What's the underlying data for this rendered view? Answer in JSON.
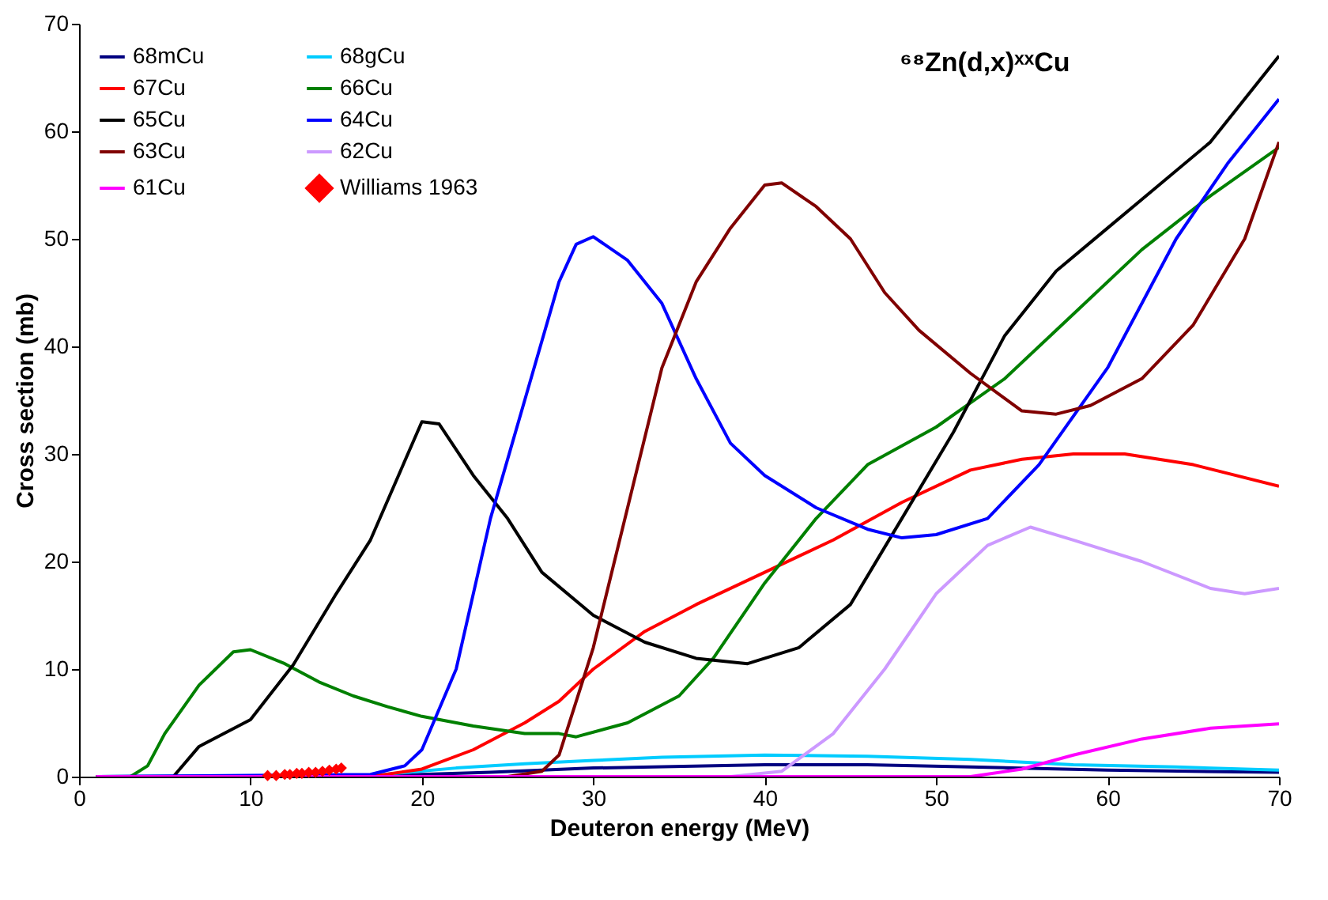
{
  "chart_data": {
    "type": "line",
    "title": "⁶⁸Zn(d,x)ˣˣCu",
    "xlabel": "Deuteron energy (MeV)",
    "ylabel": "Cross section (mb)",
    "xlim": [
      0,
      70
    ],
    "xticks": [
      0,
      10,
      20,
      30,
      40,
      50,
      60,
      70
    ],
    "ylim": [
      0,
      70
    ],
    "yticks": [
      0,
      10,
      20,
      30,
      40,
      50,
      60,
      70
    ],
    "grid": false,
    "legend": "top left",
    "line_style": "solid",
    "series": [
      {
        "name": "68mCu",
        "color": "#000080",
        "x": [
          1,
          18,
          24,
          30,
          40,
          46,
          52,
          60,
          70
        ],
        "values": [
          0,
          0.1,
          0.4,
          0.8,
          1.1,
          1.1,
          0.9,
          0.6,
          0.4
        ]
      },
      {
        "name": "68gCu",
        "color": "#00ccff",
        "x": [
          1,
          17,
          22,
          26,
          30,
          34,
          40,
          46,
          52,
          58,
          64,
          70
        ],
        "values": [
          0,
          0.1,
          0.8,
          1.2,
          1.5,
          1.8,
          2,
          1.9,
          1.6,
          1.1,
          0.9,
          0.6
        ]
      },
      {
        "name": "67Cu",
        "color": "#ff0000",
        "x": [
          1,
          17,
          20,
          23,
          26,
          28,
          30,
          33,
          36,
          40,
          44,
          48,
          52,
          55,
          58,
          61,
          65,
          70
        ],
        "values": [
          0,
          0,
          0.7,
          2.5,
          5,
          7,
          10,
          13.5,
          16,
          19,
          22,
          25.5,
          28.5,
          29.5,
          30,
          30,
          29,
          27
        ]
      },
      {
        "name": "66Cu",
        "color": "#008000",
        "x": [
          1,
          3,
          4,
          5,
          7,
          9,
          10,
          12,
          14,
          16,
          18,
          20,
          23,
          26,
          28,
          29,
          32,
          35,
          37,
          40,
          43,
          46,
          50,
          54,
          58,
          62,
          66,
          70
        ],
        "values": [
          0,
          0,
          1,
          4,
          8.5,
          11.6,
          11.8,
          10.5,
          8.8,
          7.5,
          6.5,
          5.6,
          4.7,
          4,
          4,
          3.7,
          5,
          7.5,
          11,
          18,
          24,
          29,
          32.5,
          37,
          43,
          49,
          54,
          58.5
        ]
      },
      {
        "name": "65Cu",
        "color": "#000000",
        "x": [
          1,
          5.5,
          7,
          10,
          12.5,
          15,
          17,
          20,
          21,
          23,
          25,
          27,
          30,
          33,
          36,
          39,
          42,
          45,
          48,
          51,
          54,
          57,
          60,
          63,
          66,
          70
        ],
        "values": [
          0,
          0,
          2.8,
          5.3,
          10.4,
          17,
          22,
          33,
          32.8,
          28,
          24,
          19,
          15,
          12.5,
          11,
          10.5,
          12,
          16,
          24,
          32,
          41,
          47,
          51,
          55,
          59,
          67
        ]
      },
      {
        "name": "64Cu",
        "color": "#0000ff",
        "x": [
          1,
          17,
          19,
          20,
          22,
          24,
          26,
          28,
          29,
          30,
          32,
          34,
          36,
          38,
          40,
          43,
          46,
          48,
          50,
          53,
          56,
          60,
          64,
          67,
          70
        ],
        "values": [
          0,
          0.2,
          1,
          2.5,
          10,
          24,
          35,
          46,
          49.5,
          50.2,
          48,
          44,
          37,
          31,
          28,
          25,
          23,
          22.2,
          22.5,
          24,
          29,
          38,
          50,
          57,
          63
        ]
      },
      {
        "name": "63Cu",
        "color": "#800000",
        "x": [
          1,
          25,
          27,
          28,
          30,
          32,
          34,
          36,
          38,
          40,
          41,
          43,
          45,
          47,
          49,
          52,
          55,
          57,
          59,
          62,
          65,
          68,
          70
        ],
        "values": [
          0,
          0,
          0.5,
          2,
          12,
          25,
          38,
          46,
          51,
          55,
          55.2,
          53,
          50,
          45,
          41.5,
          37.5,
          34,
          33.7,
          34.5,
          37,
          42,
          50,
          59
        ]
      },
      {
        "name": "62Cu",
        "color": "#cc99ff",
        "x": [
          1,
          38,
          41,
          44,
          47,
          50,
          53,
          55.5,
          58,
          62,
          66,
          68,
          70
        ],
        "values": [
          0,
          0,
          0.5,
          4,
          10,
          17,
          21.5,
          23.2,
          22,
          20,
          17.5,
          17,
          17.5
        ]
      },
      {
        "name": "61Cu",
        "color": "#ff00ff",
        "x": [
          1,
          52,
          55,
          58,
          62,
          66,
          70
        ],
        "values": [
          0,
          0,
          0.7,
          2,
          3.5,
          4.5,
          4.9
        ]
      },
      {
        "name": "Williams 1963",
        "color": "#ff0000",
        "type": "scatter",
        "marker": "diamond",
        "x": [
          11,
          11.5,
          12,
          12.3,
          12.7,
          13,
          13.4,
          13.8,
          14.2,
          14.6,
          15,
          15.3
        ],
        "values": [
          0.1,
          0.1,
          0.2,
          0.2,
          0.3,
          0.3,
          0.4,
          0.4,
          0.5,
          0.6,
          0.7,
          0.8
        ]
      }
    ]
  }
}
